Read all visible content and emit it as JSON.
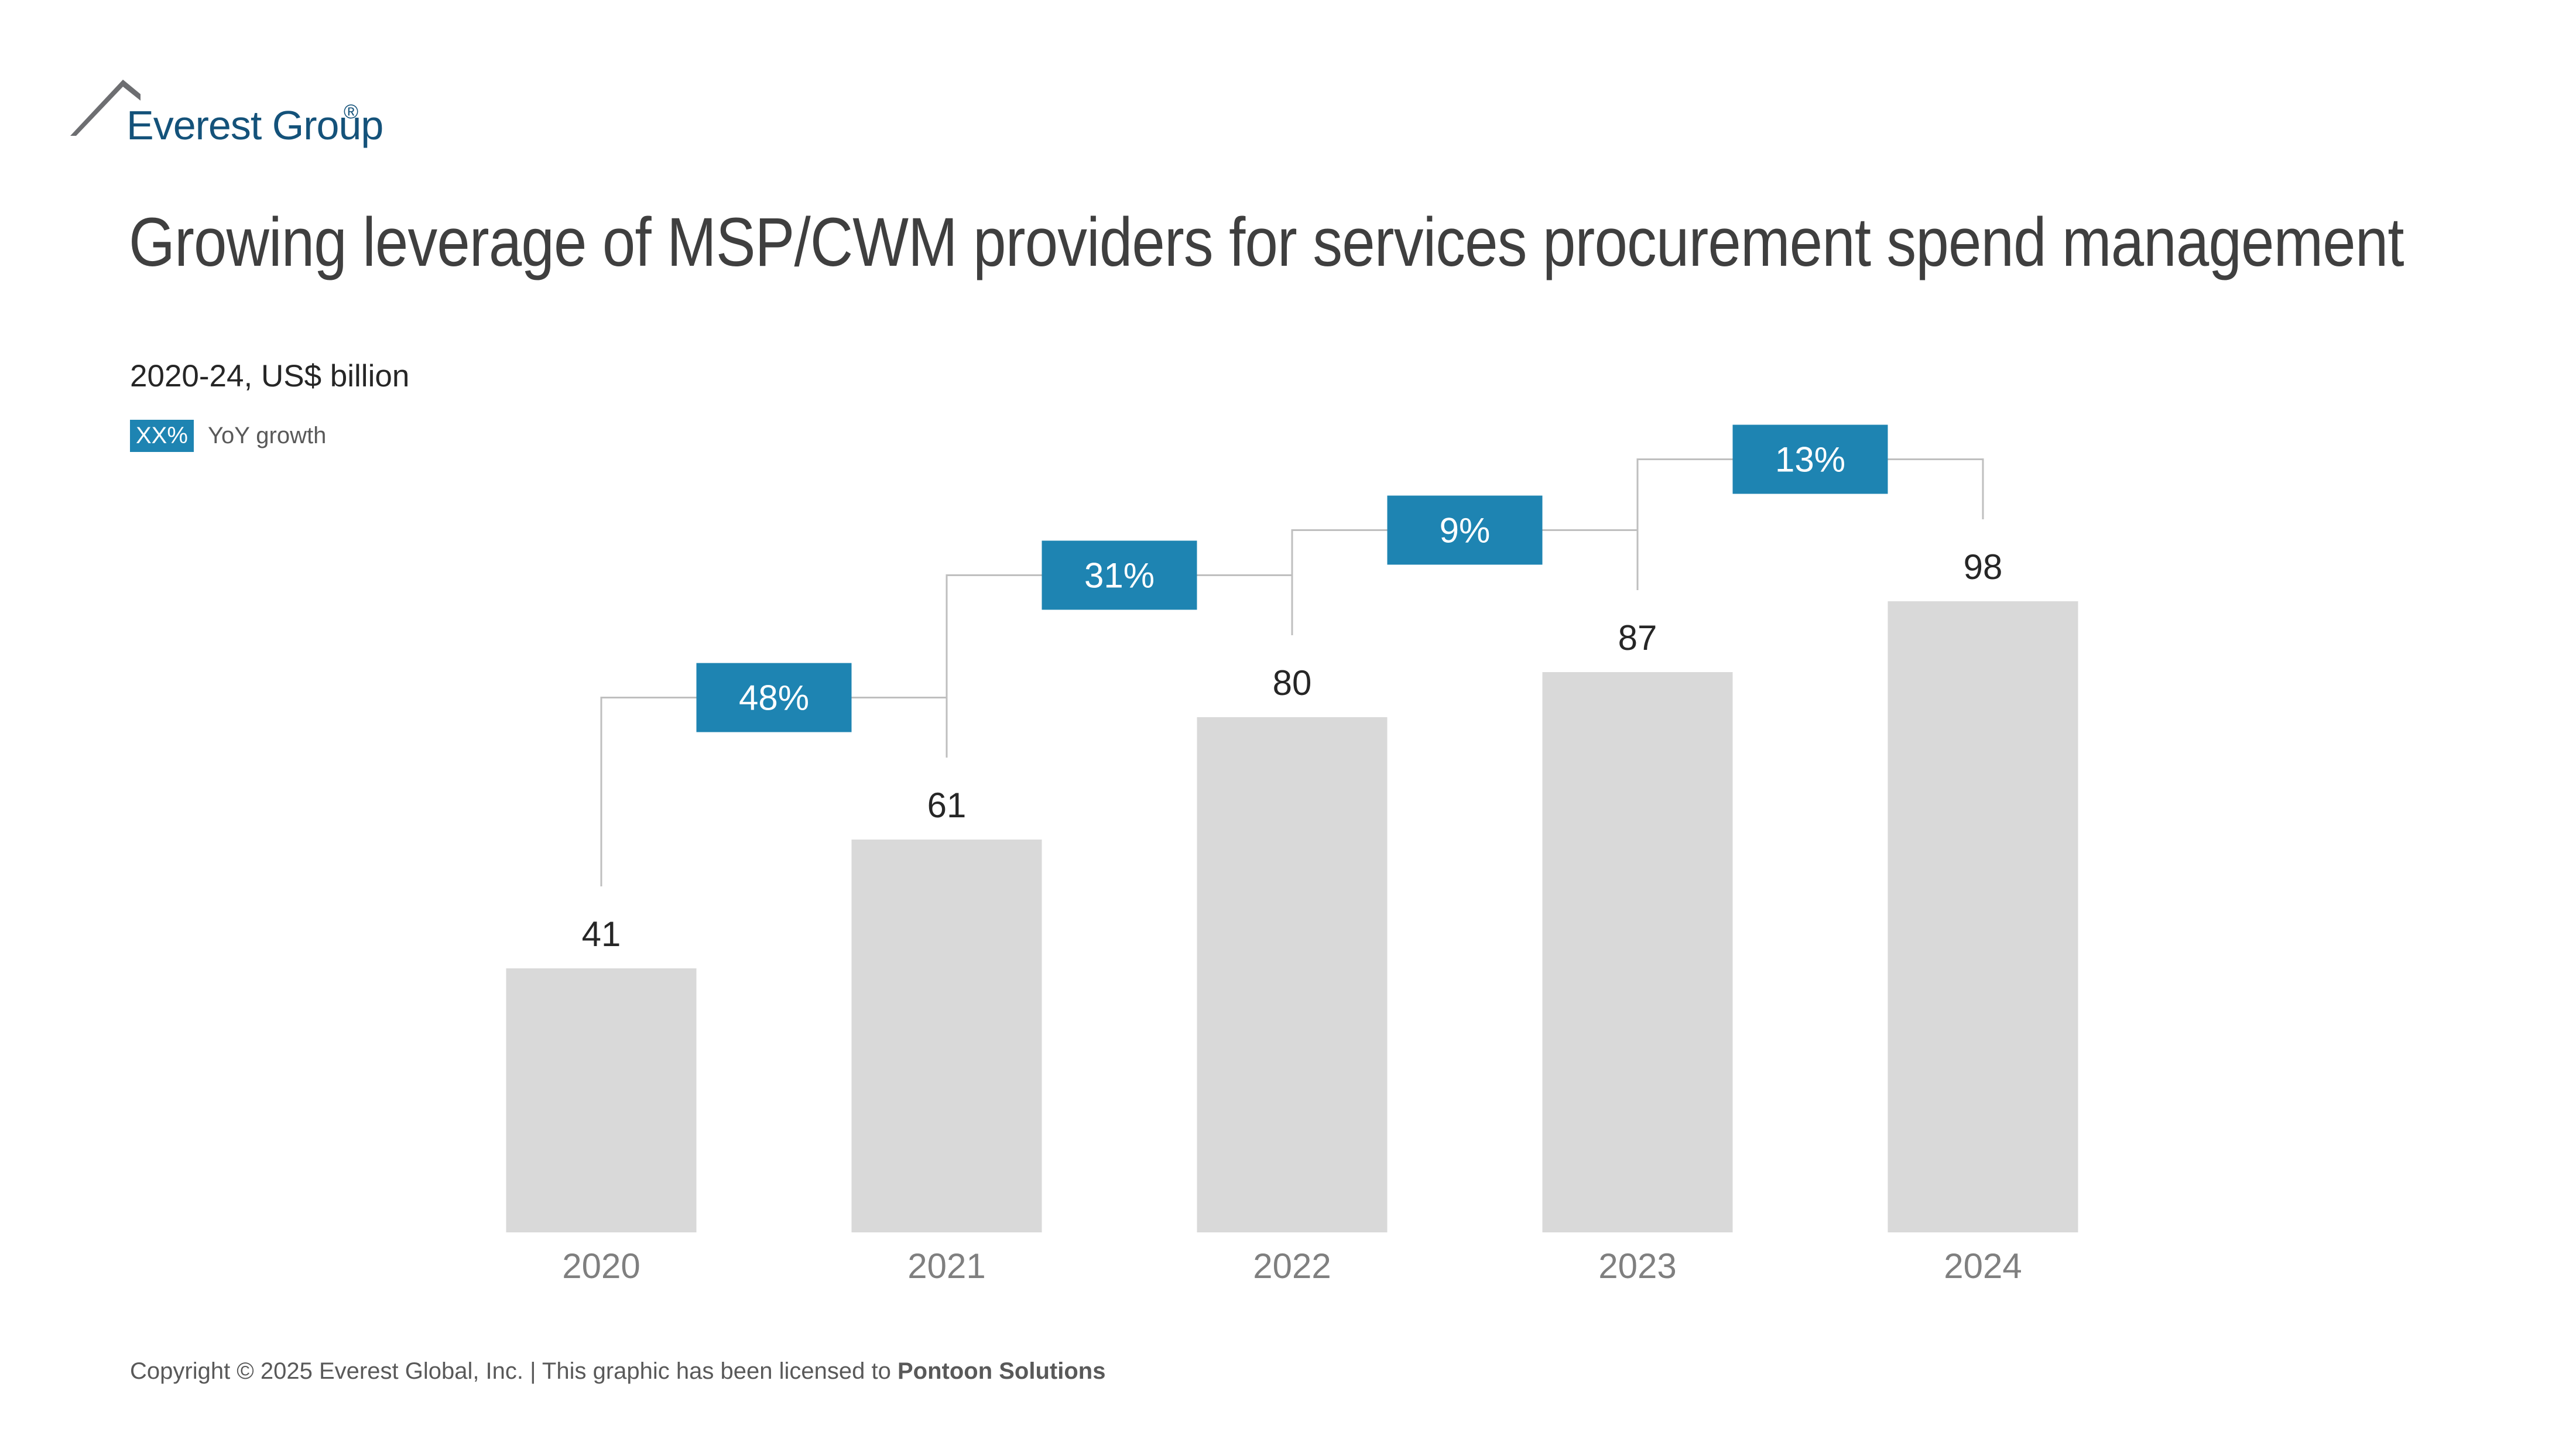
{
  "brand": {
    "name": "Everest Group",
    "registered_mark": "®",
    "color": "#14527a"
  },
  "title": "Growing leverage of MSP/CWM providers for services procurement spend management",
  "subtitle": "2020-24, US$ billion",
  "legend": {
    "swatch_text": "XX%",
    "label": "YoY growth",
    "color": "#1e84b2"
  },
  "footer": {
    "prefix": "Copyright © 2025 Everest Global, Inc. | This graphic has been licensed to ",
    "licensee": "Pontoon Solutions"
  },
  "chart_data": {
    "type": "bar",
    "title": "Growing leverage of MSP/CWM providers for services procurement spend management",
    "xlabel": "",
    "ylabel": "US$ billion",
    "categories": [
      "2020",
      "2021",
      "2022",
      "2023",
      "2024"
    ],
    "values": [
      41,
      61,
      80,
      87,
      98
    ],
    "value_labels": [
      "41",
      "61",
      "80",
      "87",
      "98"
    ],
    "yoy_growth": [
      "48%",
      "31%",
      "9%",
      "13%"
    ],
    "ylim": [
      0,
      100
    ],
    "grid": false,
    "bar_color": "#d9d9d9",
    "growth_color": "#1e84b2",
    "connector_color": "#bfbfbf"
  }
}
